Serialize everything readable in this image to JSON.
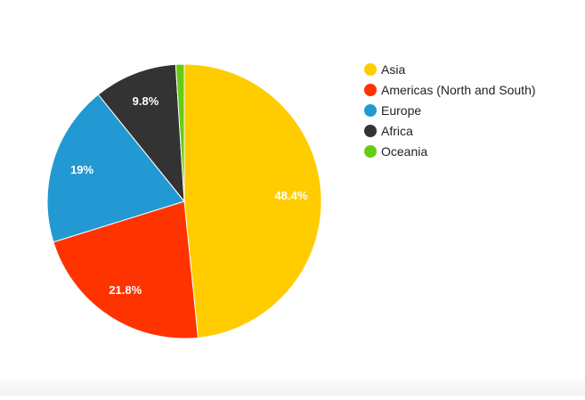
{
  "chart_data": {
    "type": "pie",
    "title": "",
    "slices": [
      {
        "label": "Asia",
        "value": 48.4,
        "value_label": "48.4%",
        "color": "#ffcc00"
      },
      {
        "label": "Americas (North and South)",
        "value": 21.8,
        "value_label": "21.8%",
        "color": "#ff3300"
      },
      {
        "label": "Europe",
        "value": 19,
        "value_label": "19%",
        "color": "#2299d2"
      },
      {
        "label": "Africa",
        "value": 9.8,
        "value_label": "9.8%",
        "color": "#333333"
      },
      {
        "label": "Oceania",
        "value": 1,
        "value_label": "",
        "color": "#66cc11"
      }
    ],
    "start_angle_deg": 0,
    "direction": "clockwise",
    "legend": "right"
  }
}
